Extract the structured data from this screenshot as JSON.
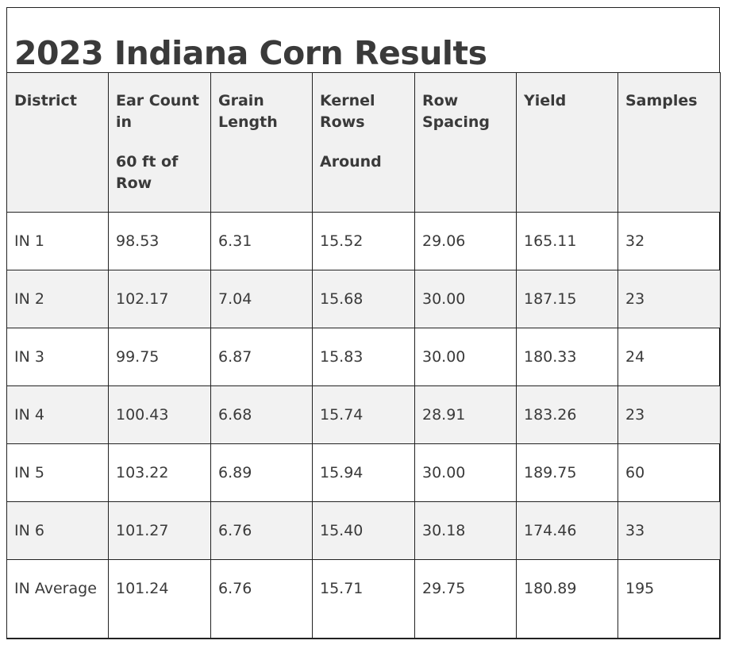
{
  "title": "2023 Indiana Corn Results",
  "columns": [
    {
      "line1": "District",
      "line2": ""
    },
    {
      "line1": "Ear Count in",
      "line2": "60 ft of Row"
    },
    {
      "line1": "Grain Length",
      "line2": ""
    },
    {
      "line1": "Kernel Rows",
      "line2": "Around"
    },
    {
      "line1": "Row Spacing",
      "line2": ""
    },
    {
      "line1": "Yield",
      "line2": ""
    },
    {
      "line1": "Samples",
      "line2": ""
    }
  ],
  "rows": [
    [
      "IN 1",
      "98.53",
      "6.31",
      "15.52",
      "29.06",
      "165.11",
      "32"
    ],
    [
      "IN 2",
      "102.17",
      "7.04",
      "15.68",
      "30.00",
      "187.15",
      "23"
    ],
    [
      "IN 3",
      "99.75",
      "6.87",
      "15.83",
      "30.00",
      "180.33",
      "24"
    ],
    [
      "IN 4",
      "100.43",
      "6.68",
      "15.74",
      "28.91",
      "183.26",
      "23"
    ],
    [
      "IN 5",
      "103.22",
      "6.89",
      "15.94",
      "30.00",
      "189.75",
      "60"
    ],
    [
      "IN 6",
      "101.27",
      "6.76",
      "15.40",
      "30.18",
      "174.46",
      "33"
    ],
    [
      "IN Average",
      "101.24",
      "6.76",
      "15.71",
      "29.75",
      "180.89",
      "195"
    ]
  ],
  "colors": {
    "text": "#3a3a3a",
    "header_bg": "#f1f1f1",
    "alt_row_bg": "#f2f2f2",
    "border": "#222222"
  }
}
